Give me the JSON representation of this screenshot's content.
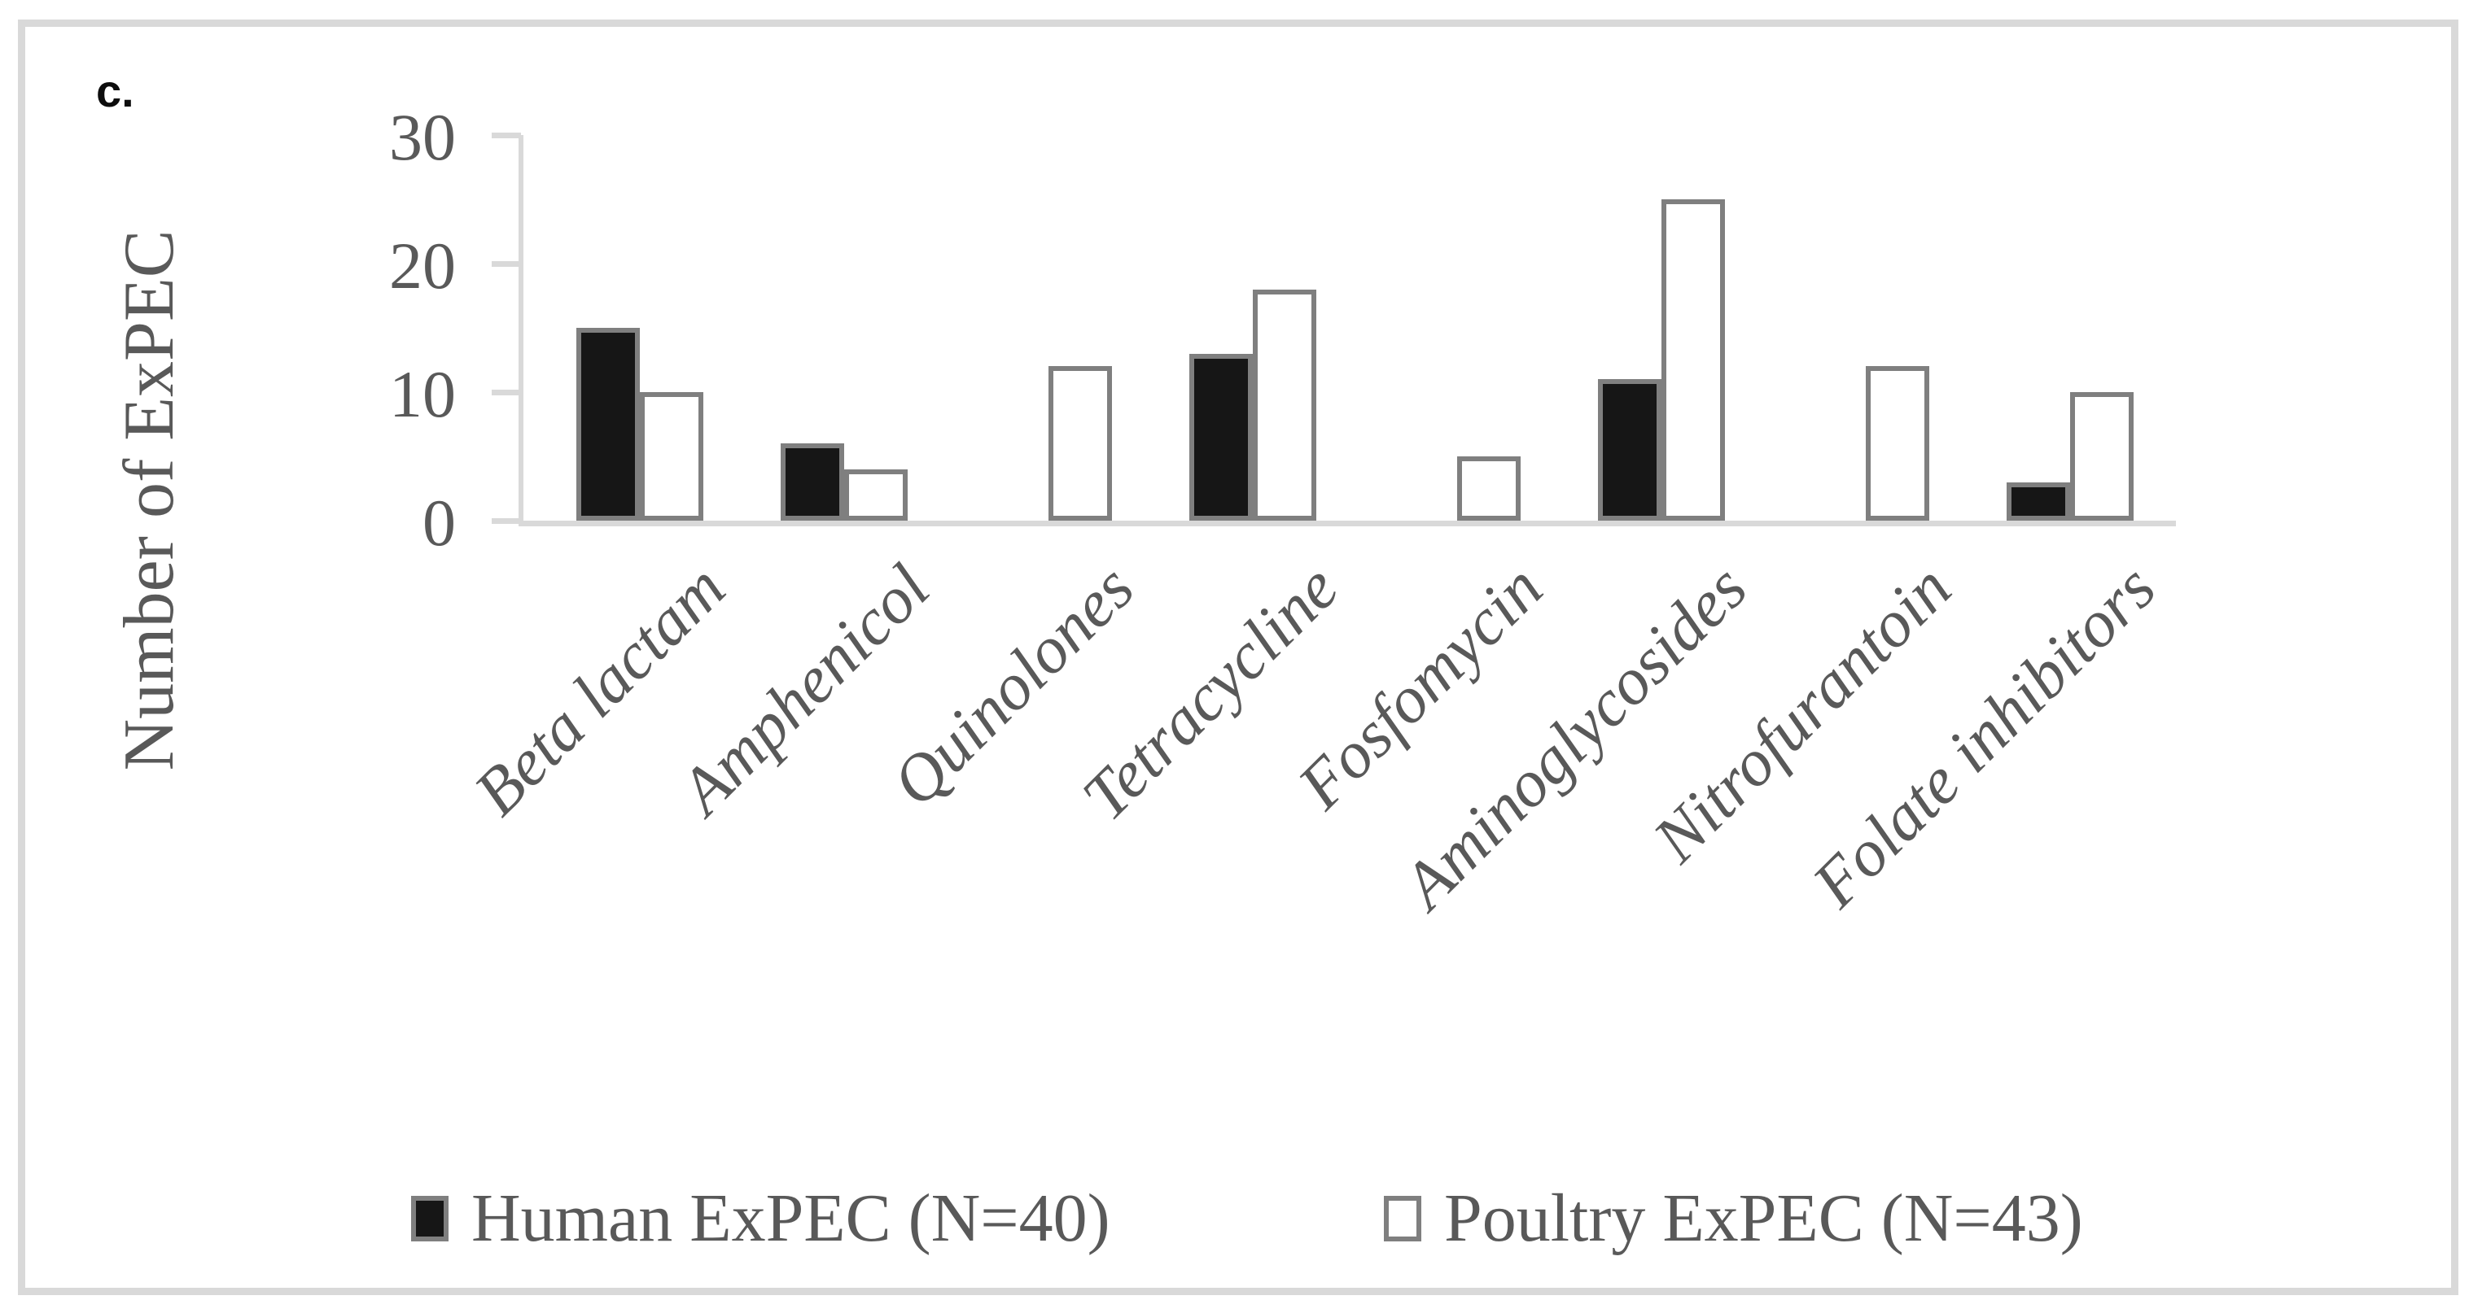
{
  "chart_data": {
    "type": "bar",
    "panel_label": "c.",
    "title": "",
    "ylabel": "Number of ExPEC",
    "xlabel": "",
    "categories": [
      "Beta lactam",
      "Amphenicol",
      "Quinolones",
      "Tetracycline",
      "Fosfomycin",
      "Aminoglycosides",
      "Nitrofurantoin",
      "Folate inhibitors"
    ],
    "series": [
      {
        "name": "Human ExPEC (N=40)",
        "fill": "#161616",
        "values": [
          15,
          6,
          0,
          13,
          0,
          11,
          0,
          3
        ]
      },
      {
        "name": "Poultry ExPEC (N=43)",
        "fill": "#ffffff",
        "values": [
          10,
          4,
          12,
          18,
          5,
          25,
          12,
          10
        ]
      }
    ],
    "yticks": [
      0,
      10,
      20,
      30
    ],
    "ylim": [
      0,
      30
    ],
    "grid": false,
    "legend_position": "bottom",
    "colors": {
      "bar_border": "#7f7f7f",
      "axis": "#d9d9d9",
      "text": "#595959",
      "black_fill": "#161616",
      "white_fill": "#ffffff"
    }
  }
}
